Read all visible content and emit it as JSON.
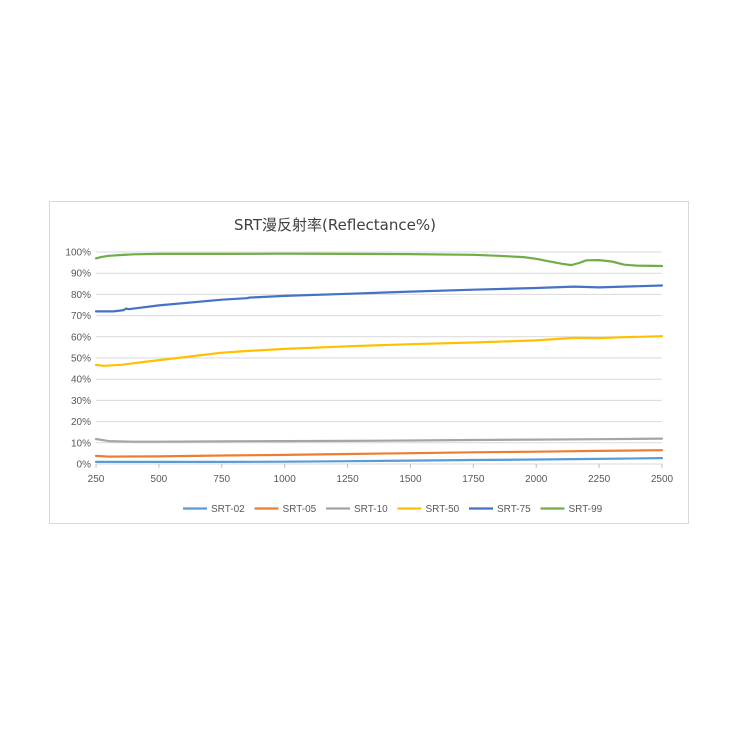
{
  "chart_data": {
    "type": "line",
    "title": "SRT漫反射率(Reflectance%)",
    "xlabel": "",
    "ylabel": "",
    "xlim": [
      250,
      2500
    ],
    "ylim": [
      0,
      100
    ],
    "x_ticks": [
      "250",
      "500",
      "750",
      "1000",
      "1250",
      "1500",
      "1750",
      "2000",
      "2250",
      "2500"
    ],
    "y_ticks": [
      "0%",
      "10%",
      "20%",
      "30%",
      "40%",
      "50%",
      "60%",
      "70%",
      "80%",
      "90%",
      "100%"
    ],
    "grid": "horizontal",
    "legend": "bottom",
    "series": [
      {
        "name": "SRT-02",
        "color": "#5b9bd5",
        "x": [
          250,
          500,
          750,
          1000,
          1250,
          1500,
          1750,
          2000,
          2250,
          2500
        ],
        "y": [
          1.0,
          1.0,
          1.0,
          1.1,
          1.3,
          1.6,
          1.9,
          2.1,
          2.4,
          2.8
        ]
      },
      {
        "name": "SRT-05",
        "color": "#ed7d31",
        "x": [
          250,
          300,
          500,
          750,
          1000,
          1250,
          1500,
          1750,
          2000,
          2250,
          2500
        ],
        "y": [
          3.8,
          3.5,
          3.6,
          4.0,
          4.3,
          4.7,
          5.1,
          5.5,
          5.8,
          6.2,
          6.5
        ]
      },
      {
        "name": "SRT-10",
        "color": "#a5a5a5",
        "x": [
          250,
          300,
          400,
          500,
          750,
          1000,
          1250,
          1500,
          1750,
          2000,
          2250,
          2500
        ],
        "y": [
          11.8,
          10.8,
          10.5,
          10.5,
          10.7,
          10.8,
          10.9,
          11.1,
          11.3,
          11.5,
          11.7,
          12.0
        ]
      },
      {
        "name": "SRT-50",
        "color": "#ffc000",
        "x": [
          250,
          280,
          350,
          500,
          750,
          850,
          1000,
          1250,
          1500,
          1750,
          2000,
          2150,
          2250,
          2350,
          2500
        ],
        "y": [
          46.8,
          46.3,
          46.8,
          49.0,
          52.5,
          53.3,
          54.3,
          55.5,
          56.5,
          57.3,
          58.3,
          59.5,
          59.4,
          59.8,
          60.3
        ]
      },
      {
        "name": "SRT-75",
        "color": "#4472c4",
        "x": [
          250,
          320,
          360,
          370,
          380,
          500,
          750,
          850,
          860,
          1000,
          1250,
          1500,
          1750,
          2000,
          2150,
          2250,
          2500
        ],
        "y": [
          72.0,
          72.0,
          72.6,
          73.3,
          73.0,
          74.8,
          77.5,
          78.2,
          78.5,
          79.3,
          80.3,
          81.3,
          82.2,
          83.0,
          83.7,
          83.3,
          84.2
        ]
      },
      {
        "name": "SRT-99",
        "color": "#70ad47",
        "x": [
          250,
          270,
          300,
          350,
          400,
          500,
          750,
          1000,
          1250,
          1500,
          1750,
          1850,
          1950,
          2000,
          2050,
          2100,
          2140,
          2170,
          2200,
          2250,
          2300,
          2350,
          2400,
          2500
        ],
        "y": [
          97.0,
          97.6,
          98.2,
          98.6,
          98.9,
          99.1,
          99.1,
          99.2,
          99.1,
          99.0,
          98.7,
          98.2,
          97.6,
          96.8,
          95.6,
          94.5,
          93.8,
          94.8,
          96.1,
          96.2,
          95.5,
          94.0,
          93.6,
          93.4
        ]
      }
    ]
  }
}
